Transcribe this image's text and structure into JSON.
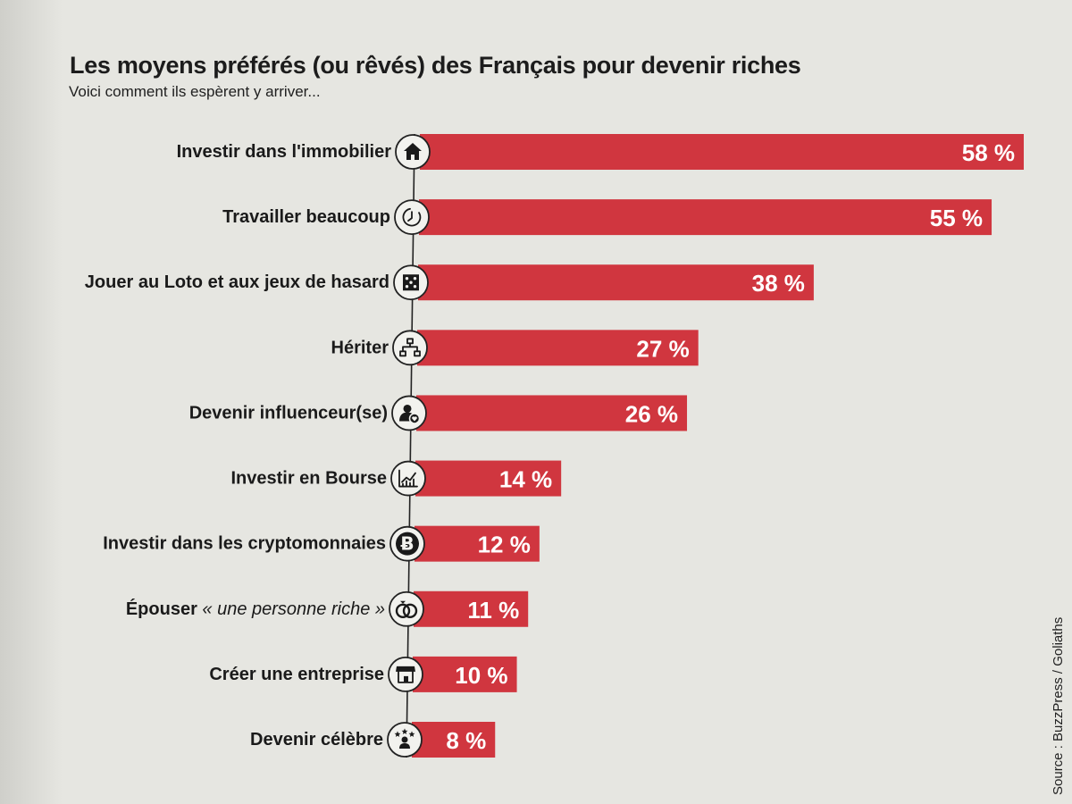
{
  "title": "Les moyens préférés (ou rêvés) des Français pour devenir riches",
  "subtitle": "Voici comment ils espèrent y arriver...",
  "source": "Source : BuzzPress / Goliaths",
  "colors": {
    "bar": "#d0363f",
    "label_text": "#ffffff",
    "category_text": "#1a1a1a",
    "axis_line": "#222222",
    "icon_bg": "#f2f2ee",
    "icon_fg": "#1a1a1a"
  },
  "chart_data": {
    "type": "bar",
    "orientation": "horizontal",
    "title": "Les moyens préférés (ou rêvés) des Français pour devenir riches",
    "subtitle": "Voici comment ils espèrent y arriver...",
    "categories": [
      "Investir dans l'immobilier",
      "Travailler beaucoup",
      "Jouer au Loto et aux jeux de hasard",
      "Hériter",
      "Devenir influenceur(se)",
      "Investir en Bourse",
      "Investir dans les cryptomonnaies",
      "Épouser « une personne riche »",
      "Créer une entreprise",
      "Devenir célèbre"
    ],
    "values": [
      58,
      55,
      38,
      27,
      26,
      14,
      12,
      11,
      10,
      8
    ],
    "value_labels": [
      "58 %",
      "55 %",
      "38 %",
      "27 %",
      "26 %",
      "14 %",
      "12 %",
      "11 %",
      "10 %",
      "8 %"
    ],
    "icons": [
      "house-icon",
      "clock-icon",
      "dice-icon",
      "hierarchy-icon",
      "influencer-icon",
      "stock-chart-icon",
      "bitcoin-icon",
      "rings-icon",
      "shop-icon",
      "star-person-icon"
    ],
    "xlim": [
      0,
      60
    ],
    "grid": false,
    "legend": "none"
  }
}
